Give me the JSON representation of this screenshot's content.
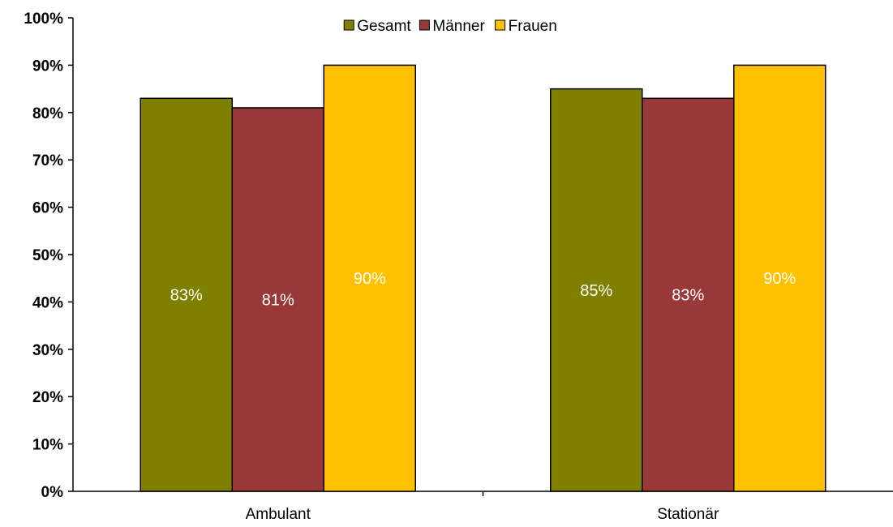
{
  "chart_data": {
    "type": "bar",
    "categories": [
      "Ambulant",
      "Stationär"
    ],
    "series": [
      {
        "name": "Gesamt",
        "values": [
          83,
          85
        ],
        "labels": [
          "83%",
          "85%"
        ],
        "color": "#808000"
      },
      {
        "name": "Männer",
        "values": [
          81,
          83
        ],
        "labels": [
          "81%",
          "83%"
        ],
        "color": "#993838"
      },
      {
        "name": "Frauen",
        "values": [
          90,
          90
        ],
        "labels": [
          "90%",
          "90%"
        ],
        "color": "#FFC000"
      }
    ],
    "title": "",
    "xlabel": "",
    "ylabel": "",
    "ylim": [
      0,
      100
    ],
    "yticks": [
      "0%",
      "10%",
      "20%",
      "30%",
      "40%",
      "50%",
      "60%",
      "70%",
      "80%",
      "90%",
      "100%"
    ],
    "grid": false,
    "legend_position": "top"
  }
}
